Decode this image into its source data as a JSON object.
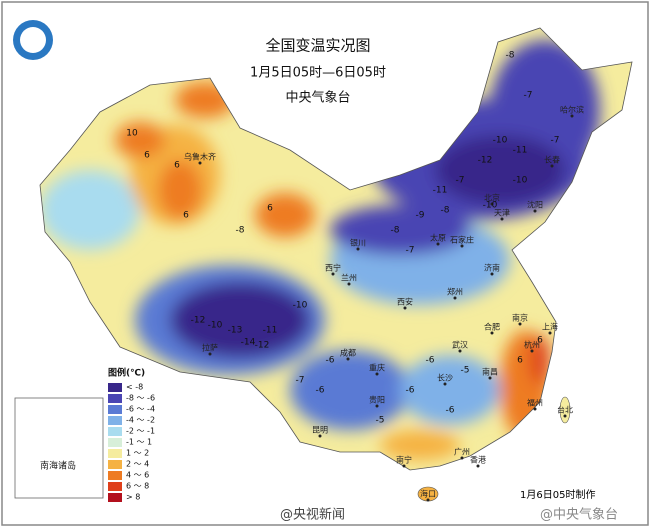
{
  "header": {
    "title": "全国变温实况图",
    "period": "1月5日05时—6日05时",
    "issuer": "中央气象台"
  },
  "legend": {
    "title": "图例(℃)",
    "items": [
      {
        "label": "< -8",
        "color": "#38278a"
      },
      {
        "label": "-8 ～ -6",
        "color": "#4a45b3"
      },
      {
        "label": "-6 ～ -4",
        "color": "#5a7ad4"
      },
      {
        "label": "-4 ～ -2",
        "color": "#7fb1e8"
      },
      {
        "label": "-2 ～ -1",
        "color": "#a9dcef"
      },
      {
        "label": "-1 ～ 1",
        "color": "#d7efd9"
      },
      {
        "label": "1 ～ 2",
        "color": "#f5ec9e"
      },
      {
        "label": "2 ～ 4",
        "color": "#f5b243"
      },
      {
        "label": "4 ～ 6",
        "color": "#ee7b22"
      },
      {
        "label": "6 ～ 8",
        "color": "#df3f1b"
      },
      {
        "label": "> 8",
        "color": "#b3101d"
      }
    ]
  },
  "inset": {
    "label": "南海诸岛"
  },
  "cities": [
    "乌鲁木齐",
    "哈尔滨",
    "长春",
    "沈阳",
    "北京",
    "天津",
    "石家庄",
    "太原",
    "银川",
    "西宁",
    "兰州",
    "西安",
    "济南",
    "郑州",
    "合肥",
    "南京",
    "上海",
    "杭州",
    "武汉",
    "成都",
    "重庆",
    "贵阳",
    "长沙",
    "南昌",
    "福州",
    "台北",
    "昆明",
    "南宁",
    "广州",
    "香港",
    "海口",
    "拉萨"
  ],
  "values": [
    "-8",
    "-7",
    "10",
    "6",
    "6",
    "6",
    "6",
    "-8",
    "-7",
    "-10",
    "-11",
    "-12",
    "-13",
    "-9",
    "-7",
    "-12",
    "-10",
    "-10",
    "-11",
    "-14",
    "-10",
    "-6",
    "-5",
    "-6",
    "-7",
    "-6",
    "-6",
    "-5",
    "6",
    "6",
    "-7",
    "-8",
    "-6",
    "-10",
    "-12",
    "-8",
    "-11"
  ],
  "footer": {
    "made": "1月6日05时制作",
    "watermark": "@央视新闻",
    "watermark2": "@中央气象台"
  }
}
